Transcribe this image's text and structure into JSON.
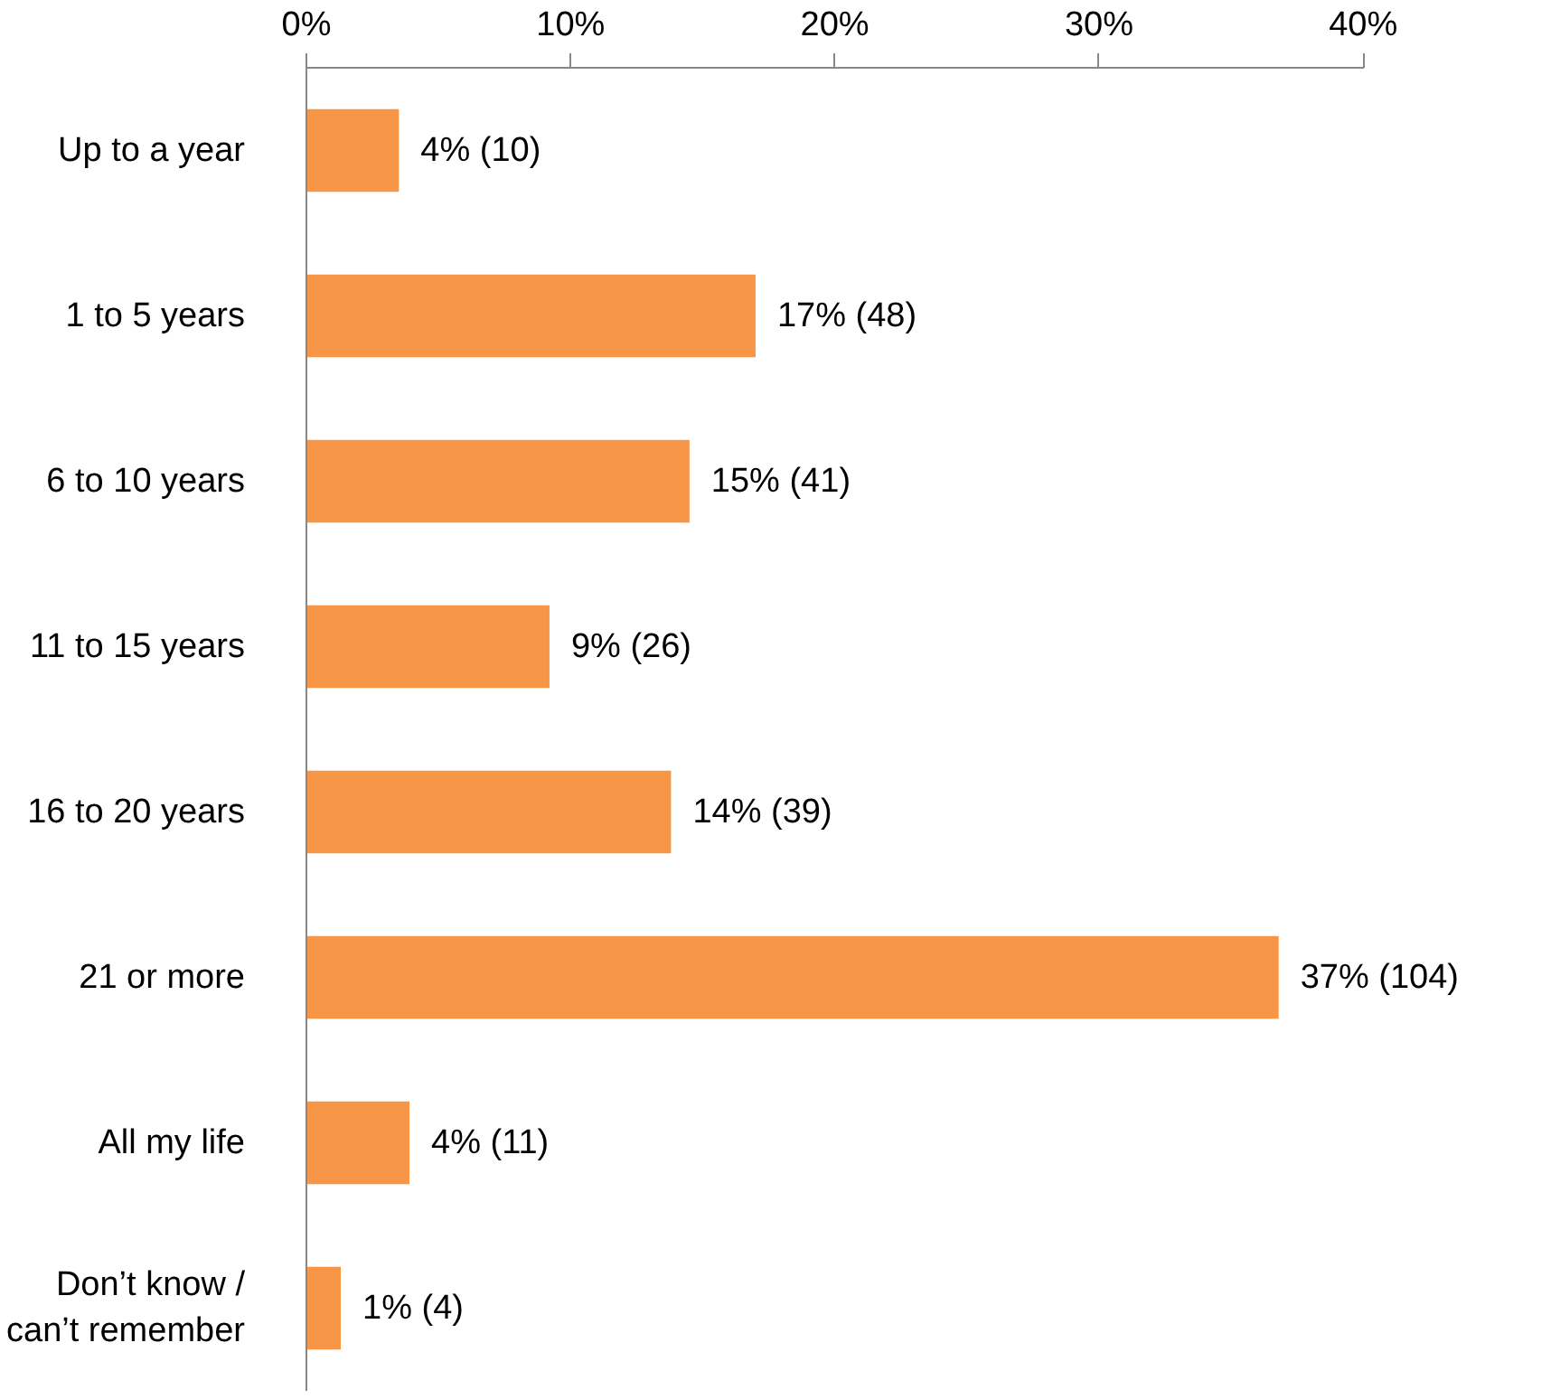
{
  "chart_data": {
    "type": "bar",
    "orientation": "horizontal",
    "categories": [
      "Up to a year",
      "1 to 5 years",
      "6 to 10 years",
      "11 to 15 years",
      "16 to 20 years",
      "21 or more",
      "All my life",
      "Don’t know /\ncan’t remember"
    ],
    "values": [
      3.5,
      17.0,
      14.5,
      9.2,
      13.8,
      36.8,
      3.9,
      1.3
    ],
    "value_labels": [
      "4% (10)",
      "17% (48)",
      "15% (41)",
      "9% (26)",
      "14% (39)",
      "37% (104)",
      "4% (11)",
      "1% (4)"
    ],
    "color": "#f79646",
    "xlim": [
      0,
      40
    ],
    "xticks": [
      {
        "value": 0,
        "label": "0%"
      },
      {
        "value": 10,
        "label": "10%"
      },
      {
        "value": 20,
        "label": "20%"
      },
      {
        "value": 30,
        "label": "30%"
      },
      {
        "value": 40,
        "label": "40%"
      }
    ],
    "grid": false
  }
}
